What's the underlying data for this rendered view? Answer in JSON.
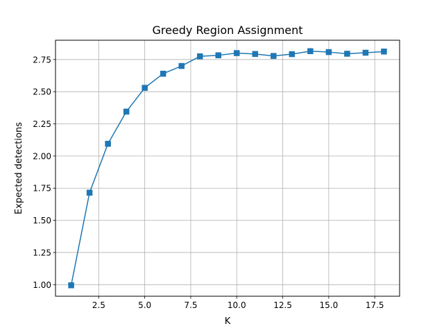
{
  "chart_data": {
    "type": "line",
    "title": "Greedy Region Assignment",
    "xlabel": "K",
    "ylabel": "Expected detections",
    "xlim": [
      0.15,
      18.85
    ],
    "ylim": [
      0.91,
      2.9
    ],
    "xticks": [
      2.5,
      5.0,
      7.5,
      10.0,
      12.5,
      15.0,
      17.5
    ],
    "xtick_labels": [
      "2.5",
      "5.0",
      "7.5",
      "10.0",
      "12.5",
      "15.0",
      "17.5"
    ],
    "yticks": [
      1.0,
      1.25,
      1.5,
      1.75,
      2.0,
      2.25,
      2.5,
      2.75
    ],
    "ytick_labels": [
      "1.00",
      "1.25",
      "1.50",
      "1.75",
      "2.00",
      "2.25",
      "2.50",
      "2.75"
    ],
    "grid": true,
    "marker": "square",
    "color": "#1f77b4",
    "series": [
      {
        "x": [
          1,
          2,
          3,
          4,
          5,
          6,
          7,
          8,
          9,
          10,
          11,
          12,
          13,
          14,
          15,
          16,
          17,
          18
        ],
        "y": [
          0.995,
          1.715,
          2.095,
          2.345,
          2.53,
          2.64,
          2.7,
          2.775,
          2.783,
          2.8,
          2.793,
          2.778,
          2.792,
          2.815,
          2.808,
          2.795,
          2.803,
          2.812
        ]
      }
    ]
  }
}
